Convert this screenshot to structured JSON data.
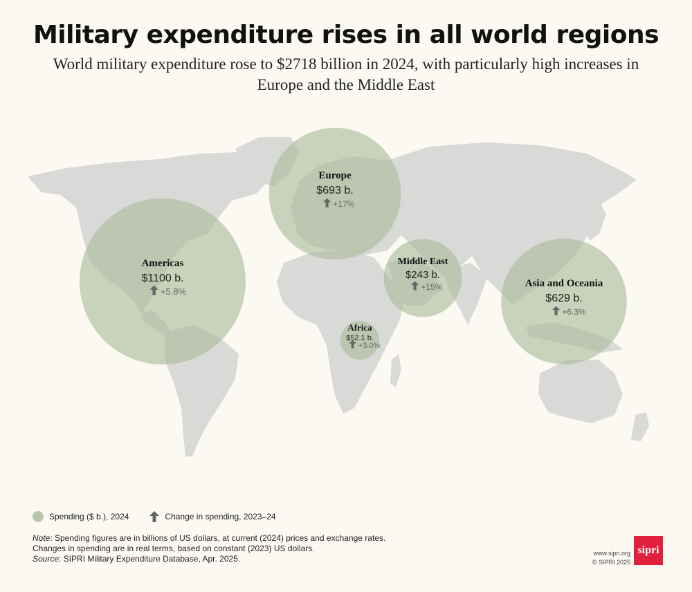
{
  "title": "Military expenditure rises in all world regions",
  "subtitle": "World military expenditure rose to $2718 billion in 2024, with particularly high increases in Europe and the Middle East",
  "colors": {
    "background": "#fbf9f1",
    "land": "#d9d9d8",
    "bubble": "#a9b99a",
    "arrow": "#666666",
    "logo": "#e0203c"
  },
  "regions": [
    {
      "name": "Americas",
      "spending_b": 1100,
      "value_label": "$1100 b.",
      "change_label": "+5.8%",
      "change_pct": 5.8
    },
    {
      "name": "Europe",
      "spending_b": 693,
      "value_label": "$693 b.",
      "change_label": "+17%",
      "change_pct": 17
    },
    {
      "name": "Asia and Oceania",
      "spending_b": 629,
      "value_label": "$629 b.",
      "change_label": "+6.3%",
      "change_pct": 6.3
    },
    {
      "name": "Middle East",
      "spending_b": 243,
      "value_label": "$243 b.",
      "change_label": "+15%",
      "change_pct": 15
    },
    {
      "name": "Africa",
      "spending_b": 52.1,
      "value_label": "$52.1 b.",
      "change_label": "+3.0%",
      "change_pct": 3.0
    }
  ],
  "legend": {
    "spending_label": "Spending ($ b.), 2024",
    "change_label": "Change in spending, 2023–24"
  },
  "notes": {
    "note_prefix": "Note",
    "note_text": ": Spending figures are in billions of US dollars, at current (2024) prices and exchange rates.",
    "note_line2": "Changes in spending are in real terms, based on constant (2023) US dollars.",
    "source_prefix": "Source",
    "source_text": ": SIPRI Military Expenditure Database, Apr. 2025."
  },
  "credit": {
    "url": "www.sipri.org",
    "copyright": "© SIPRI 2025",
    "logo_text": "sipri"
  }
}
